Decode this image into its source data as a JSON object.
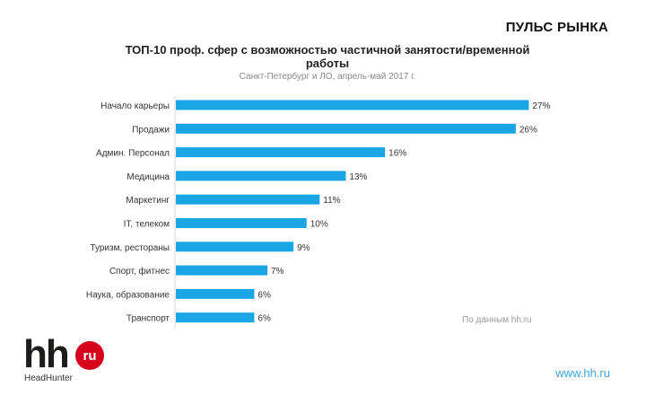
{
  "header": {
    "section_title": "ПУЛЬС РЫНКА"
  },
  "chart_data": {
    "type": "bar",
    "orientation": "horizontal",
    "title": "ТОП-10 проф. сфер с возможностью частичной занятости/временной работы",
    "title_line1": "ТОП-10 проф. сфер с возможностью частичной занятости/временной",
    "title_line2": "работы",
    "subtitle": "Санкт-Петербург и ЛО, апрель-май 2017 г.",
    "categories": [
      "Начало карьеры",
      "Продажи",
      "Админ. Персонал",
      "Медицина",
      "Маркетинг",
      "IT, телеком",
      "Туризм, рестораны",
      "Спорт, фитнес",
      "Наука, образование",
      "Транспорт"
    ],
    "values": [
      27,
      26,
      16,
      13,
      11,
      10,
      9,
      7,
      6,
      6
    ],
    "value_labels": [
      "27%",
      "26%",
      "16%",
      "13%",
      "11%",
      "10%",
      "9%",
      "7%",
      "6%",
      "6%"
    ],
    "unit": "%",
    "xlim": [
      0,
      28
    ],
    "bar_color": "#1aa6e4",
    "axis_color": "#d9d9d9",
    "source_note": "По данным hh.ru"
  },
  "footer": {
    "logo_text": "hh",
    "logo_badge": "ru",
    "logo_caption": "HeadHunter",
    "logo_red": "#d6001c",
    "site_link": "www.hh.ru"
  }
}
